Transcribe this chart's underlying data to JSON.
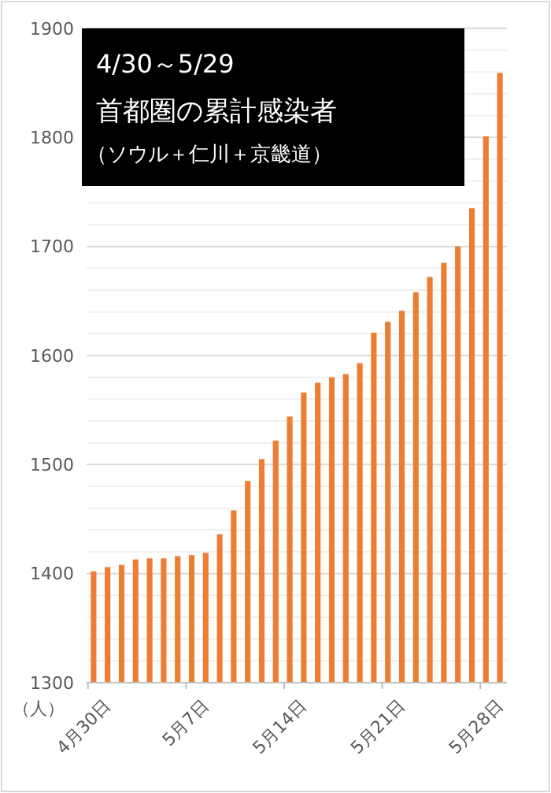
{
  "chart_data": {
    "type": "bar",
    "title": "首都圏の累計感染者",
    "subtitle": "（ソウル＋仁川＋京畿道）",
    "annotations": [
      "4/30～5/29"
    ],
    "ylabel": "（人）",
    "categories": [
      "4月30日",
      null,
      null,
      null,
      null,
      null,
      null,
      "5月7日",
      null,
      null,
      null,
      null,
      null,
      null,
      "5月14日",
      null,
      null,
      null,
      null,
      null,
      null,
      "5月21日",
      null,
      null,
      null,
      null,
      null,
      null,
      "5月28日",
      null
    ],
    "values": [
      1402,
      1406,
      1408,
      1413,
      1414,
      1414,
      1416,
      1417,
      1419,
      1436,
      1458,
      1485,
      1505,
      1522,
      1544,
      1566,
      1575,
      1580,
      1583,
      1593,
      1621,
      1631,
      1641,
      1658,
      1672,
      1685,
      1700,
      1735,
      1801,
      1859
    ],
    "color": "#ed7d31",
    "ylim": [
      1300,
      1900
    ],
    "yticks": [
      1300,
      {
        "value": 1320,
        "label": null
      },
      {
        "value": 1340,
        "label": null
      },
      {
        "value": 1360,
        "label": null
      },
      {
        "value": 1380,
        "label": null
      },
      1400,
      {
        "value": 1420,
        "label": null
      },
      {
        "value": 1440,
        "label": null
      },
      {
        "value": 1460,
        "label": null
      },
      {
        "value": 1480,
        "label": null
      },
      1500,
      {
        "value": 1520,
        "label": null
      },
      {
        "value": 1540,
        "label": null
      },
      {
        "value": 1560,
        "label": null
      },
      {
        "value": 1580,
        "label": null
      },
      1600,
      {
        "value": 1620,
        "label": null
      },
      {
        "value": 1640,
        "label": null
      },
      {
        "value": 1660,
        "label": null
      },
      {
        "value": 1680,
        "label": null
      },
      1700,
      {
        "value": 1720,
        "label": null
      },
      {
        "value": 1740,
        "label": null
      },
      {
        "value": 1760,
        "label": null
      },
      {
        "value": 1780,
        "label": null
      },
      1800,
      {
        "value": 1820,
        "label": null
      },
      {
        "value": 1840,
        "label": null
      },
      {
        "value": 1860,
        "label": null
      },
      {
        "value": 1880,
        "label": null
      },
      1900
    ],
    "grid": true
  }
}
